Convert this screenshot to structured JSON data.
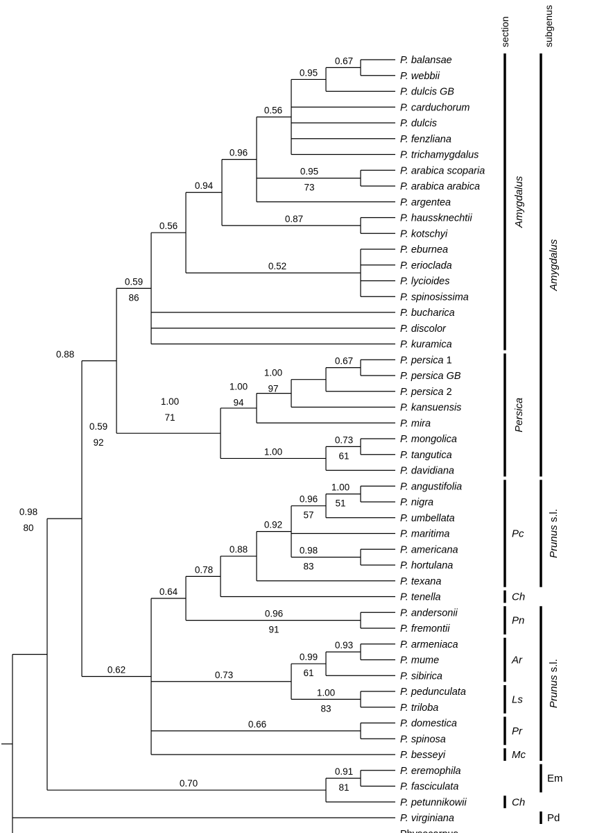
{
  "headers": {
    "section": "section",
    "subgenus": "subgenus"
  },
  "taxa": [
    [
      "P.",
      "balansae",
      ""
    ],
    [
      "P.",
      "webbii",
      ""
    ],
    [
      "P.",
      "dulcis GB",
      ""
    ],
    [
      "P.",
      "carduchorum",
      ""
    ],
    [
      "P.",
      "dulcis",
      ""
    ],
    [
      "P.",
      "fenzliana",
      ""
    ],
    [
      "P.",
      "trichamygdalus",
      ""
    ],
    [
      "P.",
      "arabica scoparia",
      ""
    ],
    [
      "P.",
      "arabica arabica",
      ""
    ],
    [
      "P.",
      "argentea",
      ""
    ],
    [
      "P.",
      "haussknechtii",
      ""
    ],
    [
      "P.",
      "kotschyi",
      ""
    ],
    [
      "P.",
      "eburnea",
      ""
    ],
    [
      "P.",
      "erioclada",
      ""
    ],
    [
      "P.",
      "lycioides",
      ""
    ],
    [
      "P.",
      "spinosissima",
      ""
    ],
    [
      "P.",
      "bucharica",
      ""
    ],
    [
      "P.",
      "discolor",
      ""
    ],
    [
      "P.",
      "kuramica",
      ""
    ],
    [
      "P.",
      "persica",
      " 1"
    ],
    [
      "P.",
      "persica GB",
      ""
    ],
    [
      "P.",
      "persica",
      " 2"
    ],
    [
      "P.",
      "kansuensis",
      ""
    ],
    [
      "P.",
      "mira",
      ""
    ],
    [
      "P.",
      "mongolica",
      ""
    ],
    [
      "P.",
      "tangutica",
      ""
    ],
    [
      "P.",
      "davidiana",
      ""
    ],
    [
      "P.",
      "angustifolia",
      ""
    ],
    [
      "P.",
      "nigra",
      ""
    ],
    [
      "P.",
      "umbellata",
      ""
    ],
    [
      "P.",
      "maritima",
      ""
    ],
    [
      "P.",
      "americana",
      ""
    ],
    [
      "P.",
      "hortulana",
      ""
    ],
    [
      "P.",
      "texana",
      ""
    ],
    [
      "P.",
      "tenella",
      ""
    ],
    [
      "P.",
      "andersonii",
      ""
    ],
    [
      "P.",
      "fremontii",
      ""
    ],
    [
      "P.",
      "armeniaca",
      ""
    ],
    [
      "P.",
      "mume",
      ""
    ],
    [
      "P.",
      "sibirica",
      ""
    ],
    [
      "P.",
      "pedunculata",
      ""
    ],
    [
      "P.",
      "triloba",
      ""
    ],
    [
      "P.",
      "domestica",
      ""
    ],
    [
      "P.",
      "spinosa",
      ""
    ],
    [
      "P.",
      "besseyi",
      ""
    ],
    [
      "P.",
      "eremophila",
      ""
    ],
    [
      "P.",
      "fasciculata",
      ""
    ],
    [
      "P.",
      "petunnikowii",
      ""
    ],
    [
      "P.",
      "virginiana",
      ""
    ],
    [
      "",
      "",
      "Physocarpus"
    ]
  ],
  "nodes": [
    {
      "id": "n1",
      "up": "0.67"
    },
    {
      "id": "n2",
      "up": "0.95"
    },
    {
      "id": "n3",
      "up": "0.95",
      "down": "73"
    },
    {
      "id": "n4",
      "up": "0.56"
    },
    {
      "id": "n5",
      "up": "0.87"
    },
    {
      "id": "n6",
      "up": "0.96"
    },
    {
      "id": "n7",
      "up": "0.52"
    },
    {
      "id": "n8",
      "up": "0.94"
    },
    {
      "id": "n9",
      "up": "0.56"
    },
    {
      "id": "n10",
      "up": "0.59",
      "down": "86"
    },
    {
      "id": "n11",
      "up": "0.67"
    },
    {
      "id": "n12",
      "up": "1.00",
      "down": "97"
    },
    {
      "id": "n13",
      "up": "1.00",
      "down": "94"
    },
    {
      "id": "n14",
      "up": "0.73",
      "down": "61"
    },
    {
      "id": "n15",
      "up": "1.00"
    },
    {
      "id": "n16",
      "up": "1.00",
      "down": "71"
    },
    {
      "id": "n17",
      "up": "0.59",
      "down": "92"
    },
    {
      "id": "n18",
      "up": "1.00",
      "down": "51"
    },
    {
      "id": "n19",
      "up": "0.96",
      "down": "57"
    },
    {
      "id": "n20",
      "up": "0.98",
      "down": "83"
    },
    {
      "id": "n21",
      "up": "0.92"
    },
    {
      "id": "n22",
      "up": "0.88"
    },
    {
      "id": "n23",
      "up": "0.78"
    },
    {
      "id": "n24",
      "up": "0.96",
      "down": "91"
    },
    {
      "id": "n25",
      "up": "0.64"
    },
    {
      "id": "n26",
      "up": "0.93"
    },
    {
      "id": "n27",
      "up": "0.99",
      "down": "61"
    },
    {
      "id": "n28",
      "up": "1.00",
      "down": "83"
    },
    {
      "id": "n29",
      "up": "0.73"
    },
    {
      "id": "n30",
      "up": "0.66"
    },
    {
      "id": "n31",
      "up": "0.62"
    },
    {
      "id": "n32",
      "up": "0.88"
    },
    {
      "id": "n33",
      "up": "0.91",
      "down": "81"
    },
    {
      "id": "n34",
      "up": "0.70"
    },
    {
      "id": "n35",
      "up": "0.98",
      "down": "80"
    }
  ],
  "sections": [
    "Amygdalus",
    "Persica",
    "Pc",
    "Ch",
    "Pn",
    "Ar",
    "Ls",
    "Pr",
    "Mc",
    "Ch"
  ],
  "subgenera": [
    "Amygdalus",
    "Prunus s.l.",
    "Prunus s.l.",
    "Em",
    "Pd"
  ]
}
